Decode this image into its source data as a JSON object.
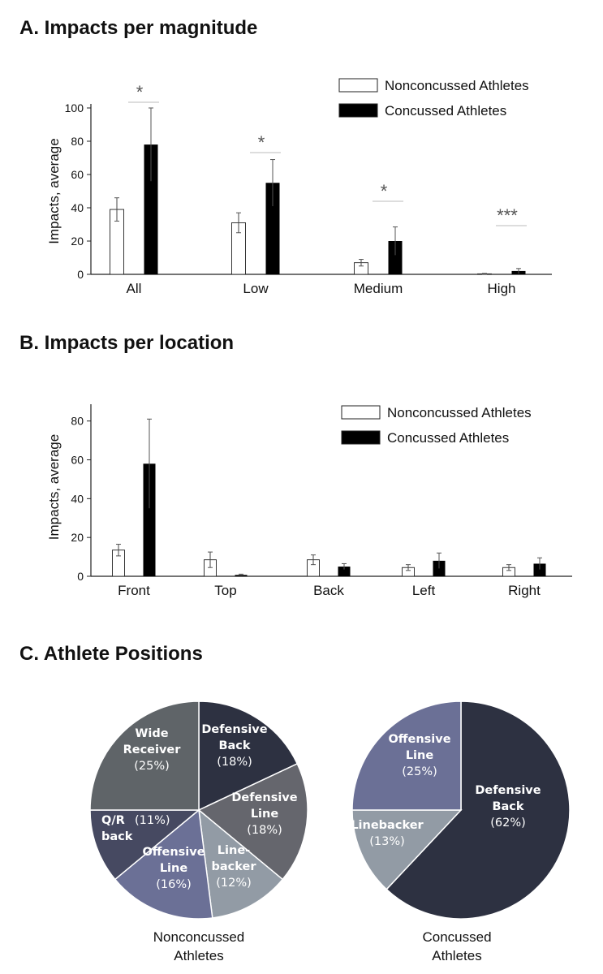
{
  "chart_data": [
    {
      "type": "bar",
      "title": "A. Impacts per magnitude",
      "xlabel": "",
      "ylabel": "Impacts, average",
      "ylim": [
        0,
        100
      ],
      "yticks": [
        "0",
        "20",
        "40",
        "60",
        "80",
        "100"
      ],
      "categories": [
        "All",
        "Low",
        "Medium",
        "High"
      ],
      "series": [
        {
          "name": "Nonconcussed Athletes",
          "color": "#ffffff",
          "values": [
            39,
            31,
            7,
            0.3
          ],
          "errors": [
            7,
            6,
            2,
            0.3
          ]
        },
        {
          "name": "Concussed Athletes",
          "color": "#000000",
          "values": [
            78,
            55,
            20,
            2
          ],
          "errors": [
            22,
            14,
            8.5,
            1.5
          ]
        }
      ],
      "significance": [
        "*",
        "*",
        "*",
        "***"
      ],
      "legend": "top-right",
      "grid": false
    },
    {
      "type": "bar",
      "title": "B. Impacts per location",
      "xlabel": "",
      "ylabel": "Impacts, average",
      "ylim": [
        0,
        92
      ],
      "yticks": [
        "0",
        "20",
        "40",
        "60",
        "80"
      ],
      "categories": [
        "Front",
        "Top",
        "Back",
        "Left",
        "Right"
      ],
      "series": [
        {
          "name": "Nonconcussed Athletes",
          "color": "#ffffff",
          "values": [
            13.5,
            8.5,
            8.5,
            4.5,
            4.5
          ],
          "errors": [
            3,
            4,
            2.5,
            1.5,
            1.5
          ]
        },
        {
          "name": "Concussed Athletes",
          "color": "#000000",
          "values": [
            58,
            0.7,
            5,
            8,
            6.5
          ],
          "errors": [
            23,
            0.4,
            1.5,
            4,
            3
          ]
        }
      ],
      "legend": "top-right",
      "grid": false
    },
    {
      "type": "pie",
      "title": "C. Athlete Positions",
      "charts": [
        {
          "caption_lines": [
            "Nonconcussed",
            "Athletes"
          ],
          "slices": [
            {
              "name_lines": [
                "Defensive",
                "Back"
              ],
              "pct_text": "(18%)",
              "value": 18,
              "color": "#2d3141"
            },
            {
              "name_lines": [
                "Defensive",
                "Line"
              ],
              "pct_text": "(18%)",
              "value": 18,
              "color": "#65666d"
            },
            {
              "name_lines": [
                "Line-",
                "backer"
              ],
              "pct_text": "(12%)",
              "value": 12,
              "color": "#929ba5"
            },
            {
              "name_lines": [
                "Offensive",
                "Line"
              ],
              "pct_text": "(16%)",
              "value": 16,
              "color": "#6b7096"
            },
            {
              "name_lines": [
                "Q/R",
                "back"
              ],
              "pct_text": "(11%)",
              "value": 11,
              "color": "#464961"
            },
            {
              "name_lines": [
                "Wide",
                "Receiver"
              ],
              "pct_text": "(25%)",
              "value": 25,
              "color": "#5f6468"
            }
          ]
        },
        {
          "caption_lines": [
            "Concussed",
            "Athletes"
          ],
          "slices": [
            {
              "name_lines": [
                "Defensive",
                "Back"
              ],
              "pct_text": "(62%)",
              "value": 62,
              "color": "#2d3141"
            },
            {
              "name_lines": [
                "Linebacker"
              ],
              "pct_text": "(13%)",
              "value": 13,
              "color": "#929ba5"
            },
            {
              "name_lines": [
                "Offensive",
                "Line"
              ],
              "pct_text": "(25%)",
              "value": 25,
              "color": "#6b7096"
            }
          ]
        }
      ]
    }
  ]
}
